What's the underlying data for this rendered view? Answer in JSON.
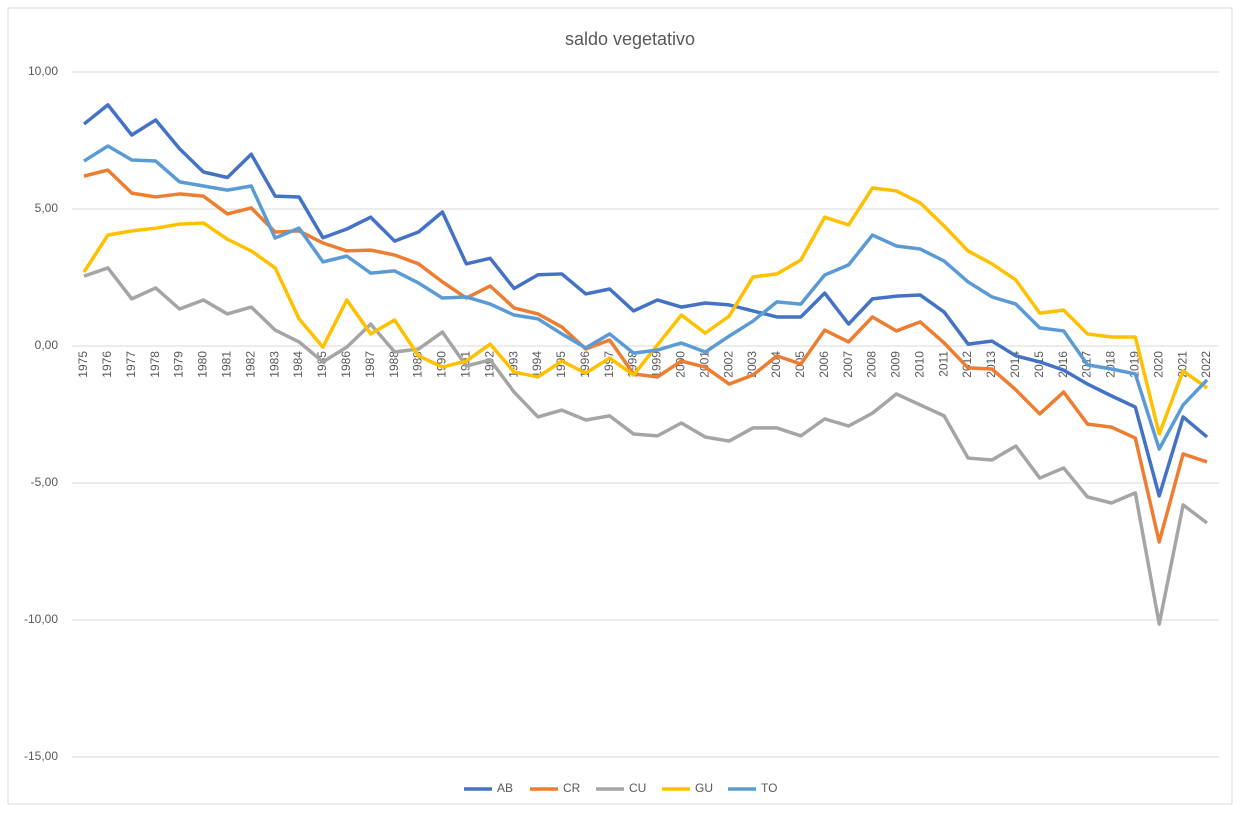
{
  "chart_data": {
    "type": "line",
    "title": "saldo vegetativo",
    "categories": [
      "1975",
      "1976",
      "1977",
      "1978",
      "1979",
      "1980",
      "1981",
      "1982",
      "1983",
      "1984",
      "1985",
      "1986",
      "1987",
      "1988",
      "1989",
      "1990",
      "1991",
      "1992",
      "1993",
      "1994",
      "1995",
      "1996",
      "1997",
      "1998",
      "1999",
      "2000",
      "2001",
      "2002",
      "2003",
      "2004",
      "2005",
      "2006",
      "2007",
      "2008",
      "2009",
      "2010",
      "2011",
      "2012",
      "2013",
      "2014",
      "2015",
      "2016",
      "2017",
      "2018",
      "2019",
      "2020",
      "2021",
      "2022"
    ],
    "series": [
      {
        "name": "AB",
        "color": "#4472C4",
        "values": [
          8.1,
          8.8,
          7.7,
          8.25,
          7.2,
          6.35,
          6.15,
          7.0,
          5.47,
          5.44,
          3.95,
          4.27,
          4.7,
          3.83,
          4.16,
          4.89,
          3.0,
          3.2,
          2.1,
          2.6,
          2.63,
          1.9,
          2.08,
          1.28,
          1.68,
          1.42,
          1.57,
          1.5,
          1.28,
          1.06,
          1.06,
          1.93,
          0.8,
          1.72,
          1.82,
          1.86,
          1.24,
          0.07,
          0.18,
          -0.36,
          -0.58,
          -0.88,
          -1.39,
          -1.82,
          -2.23,
          -5.47,
          -2.59,
          -3.32
        ]
      },
      {
        "name": "CR",
        "color": "#ED7D31",
        "values": [
          6.2,
          6.42,
          5.58,
          5.44,
          5.55,
          5.47,
          4.82,
          5.04,
          4.16,
          4.2,
          3.76,
          3.47,
          3.5,
          3.32,
          3.0,
          2.34,
          1.75,
          2.19,
          1.39,
          1.17,
          0.69,
          -0.11,
          0.22,
          -1.02,
          -1.13,
          -0.55,
          -0.77,
          -1.39,
          -1.06,
          -0.36,
          -0.66,
          0.58,
          0.15,
          1.06,
          0.55,
          0.88,
          0.11,
          -0.8,
          -0.84,
          -1.6,
          -2.48,
          -1.68,
          -2.85,
          -2.96,
          -3.36,
          -7.15,
          -3.94,
          -4.23
        ]
      },
      {
        "name": "CU",
        "color": "#A5A5A5",
        "values": [
          2.55,
          2.85,
          1.72,
          2.12,
          1.35,
          1.68,
          1.17,
          1.42,
          0.58,
          0.15,
          -0.58,
          -0.04,
          0.8,
          -0.22,
          -0.11,
          0.51,
          -0.73,
          -0.51,
          -1.68,
          -2.59,
          -2.34,
          -2.7,
          -2.55,
          -3.21,
          -3.28,
          -2.81,
          -3.32,
          -3.47,
          -2.99,
          -2.99,
          -3.28,
          -2.66,
          -2.92,
          -2.45,
          -1.75,
          -2.15,
          -2.55,
          -4.09,
          -4.16,
          -3.65,
          -4.82,
          -4.45,
          -5.51,
          -5.73,
          -5.36,
          -10.15,
          -5.8,
          -6.46
        ]
      },
      {
        "name": "GU",
        "color": "#FFC000",
        "values": [
          2.7,
          4.05,
          4.2,
          4.3,
          4.45,
          4.49,
          3.9,
          3.47,
          2.85,
          0.99,
          -0.04,
          1.68,
          0.44,
          0.95,
          -0.36,
          -0.77,
          -0.55,
          0.07,
          -0.95,
          -1.13,
          -0.55,
          -0.99,
          -0.44,
          -1.06,
          0.04,
          1.13,
          0.47,
          1.09,
          2.52,
          2.63,
          3.14,
          4.7,
          4.42,
          5.77,
          5.66,
          5.22,
          4.38,
          3.47,
          3.0,
          2.41,
          1.2,
          1.31,
          0.44,
          0.33,
          0.33,
          -3.21,
          -0.91,
          -1.53
        ]
      },
      {
        "name": "TO",
        "color": "#5B9BD5",
        "values": [
          6.75,
          7.3,
          6.79,
          6.75,
          5.99,
          5.84,
          5.69,
          5.84,
          3.94,
          4.3,
          3.07,
          3.28,
          2.66,
          2.74,
          2.3,
          1.75,
          1.79,
          1.53,
          1.13,
          0.99,
          0.44,
          -0.07,
          0.44,
          -0.26,
          -0.15,
          0.11,
          -0.22,
          0.36,
          0.91,
          1.61,
          1.53,
          2.59,
          2.96,
          4.05,
          3.65,
          3.54,
          3.1,
          2.34,
          1.79,
          1.53,
          0.66,
          0.55,
          -0.69,
          -0.84,
          -1.02,
          -3.76,
          -2.15,
          -1.24
        ]
      }
    ],
    "ylim": [
      -15,
      10
    ],
    "yticks": [
      {
        "value": -15,
        "label": "-15,00"
      },
      {
        "value": -10,
        "label": "-10,00"
      },
      {
        "value": -5,
        "label": "-5,00"
      },
      {
        "value": 0,
        "label": "0,00"
      },
      {
        "value": 5,
        "label": "5,00"
      },
      {
        "value": 10,
        "label": "10,00"
      }
    ],
    "grid": true,
    "legend": "bottom"
  }
}
